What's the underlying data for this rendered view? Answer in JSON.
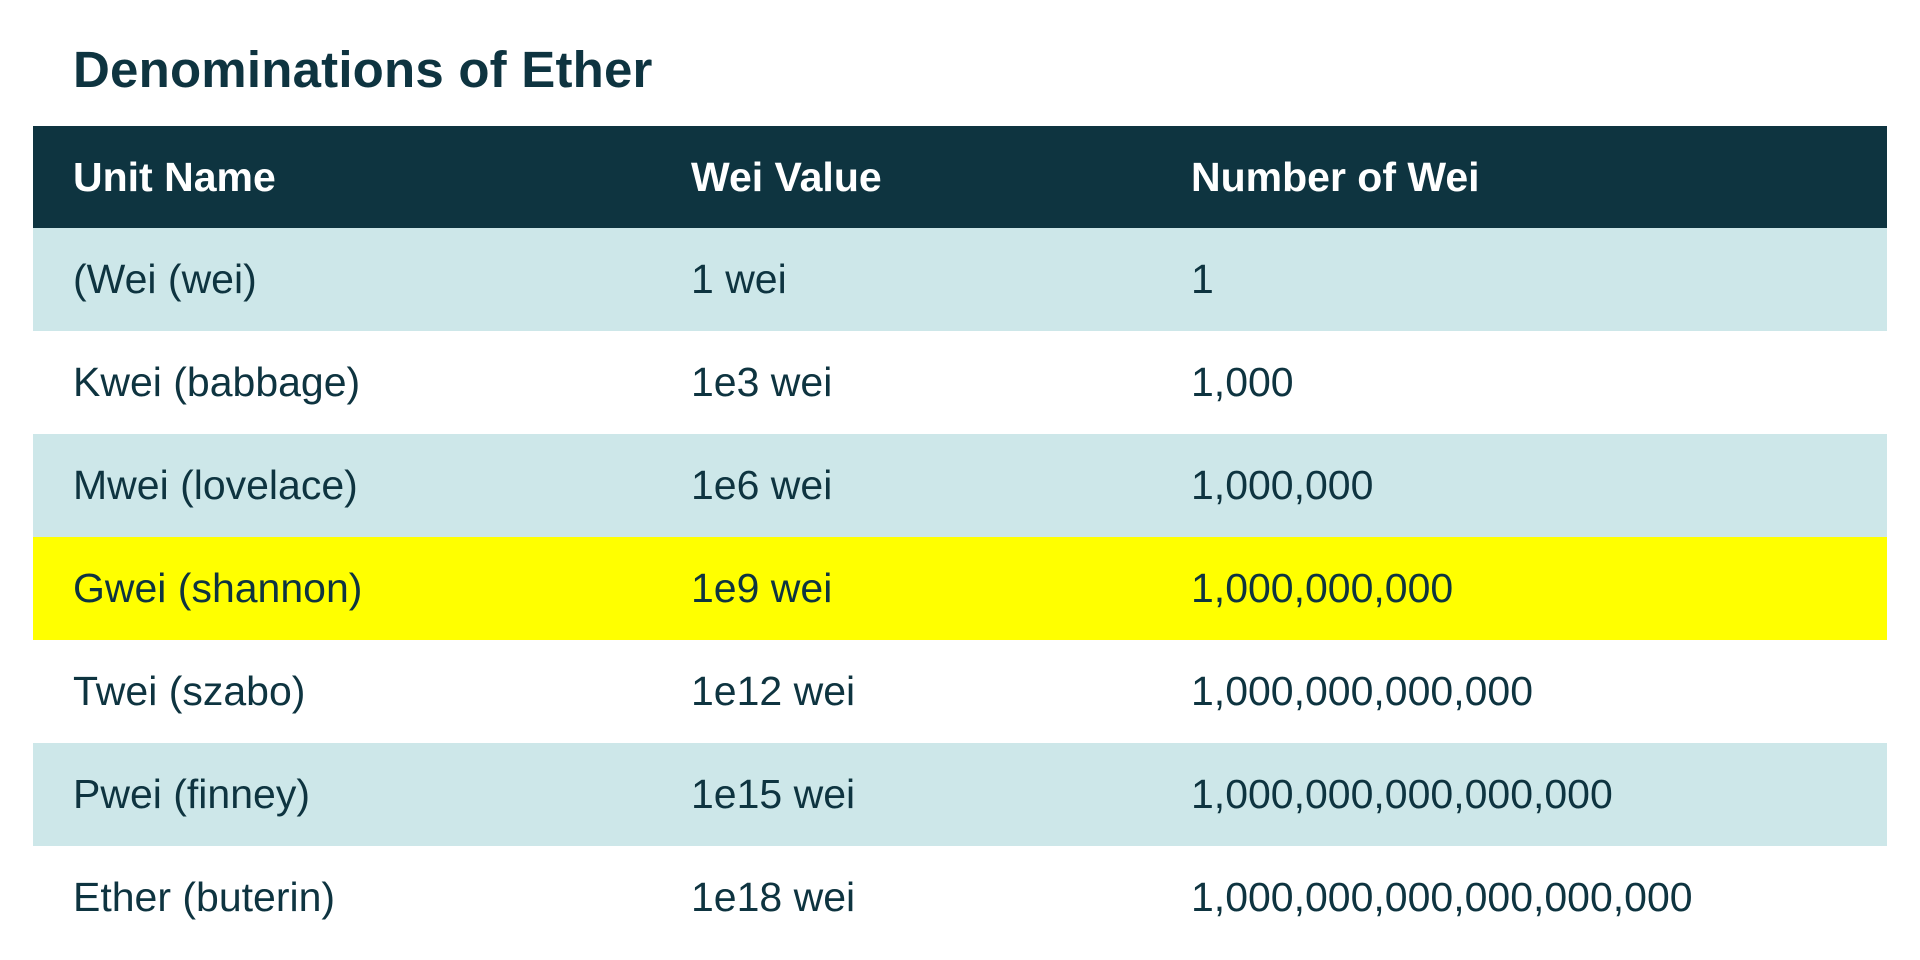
{
  "title": "Denominations of Ether",
  "colors": {
    "header_bg": "#0e3440",
    "header_text": "#ffffff",
    "row_shade": "#cde7e9",
    "row_plain": "#ffffff",
    "row_highlight": "#ffff00",
    "text": "#0e3440"
  },
  "table": {
    "headers": [
      "Unit Name",
      "Wei Value",
      "Number of Wei"
    ],
    "rows": [
      {
        "unit": "(Wei (wei)",
        "wei_value": "1 wei",
        "number": "1",
        "style": "shade"
      },
      {
        "unit": "Kwei (babbage)",
        "wei_value": "1e3 wei",
        "number": "1,000",
        "style": "plain"
      },
      {
        "unit": "Mwei (lovelace)",
        "wei_value": "1e6 wei",
        "number": "1,000,000",
        "style": "shade"
      },
      {
        "unit": "Gwei (shannon)",
        "wei_value": "1e9 wei",
        "number": "1,000,000,000",
        "style": "highlight"
      },
      {
        "unit": "Twei (szabo)",
        "wei_value": "1e12 wei",
        "number": "1,000,000,000,000",
        "style": "plain"
      },
      {
        "unit": "Pwei (finney)",
        "wei_value": "1e15 wei",
        "number": "1,000,000,000,000,000",
        "style": "shade"
      },
      {
        "unit": "Ether (buterin)",
        "wei_value": "1e18 wei",
        "number": "1,000,000,000,000,000,000",
        "style": "plain"
      }
    ]
  }
}
